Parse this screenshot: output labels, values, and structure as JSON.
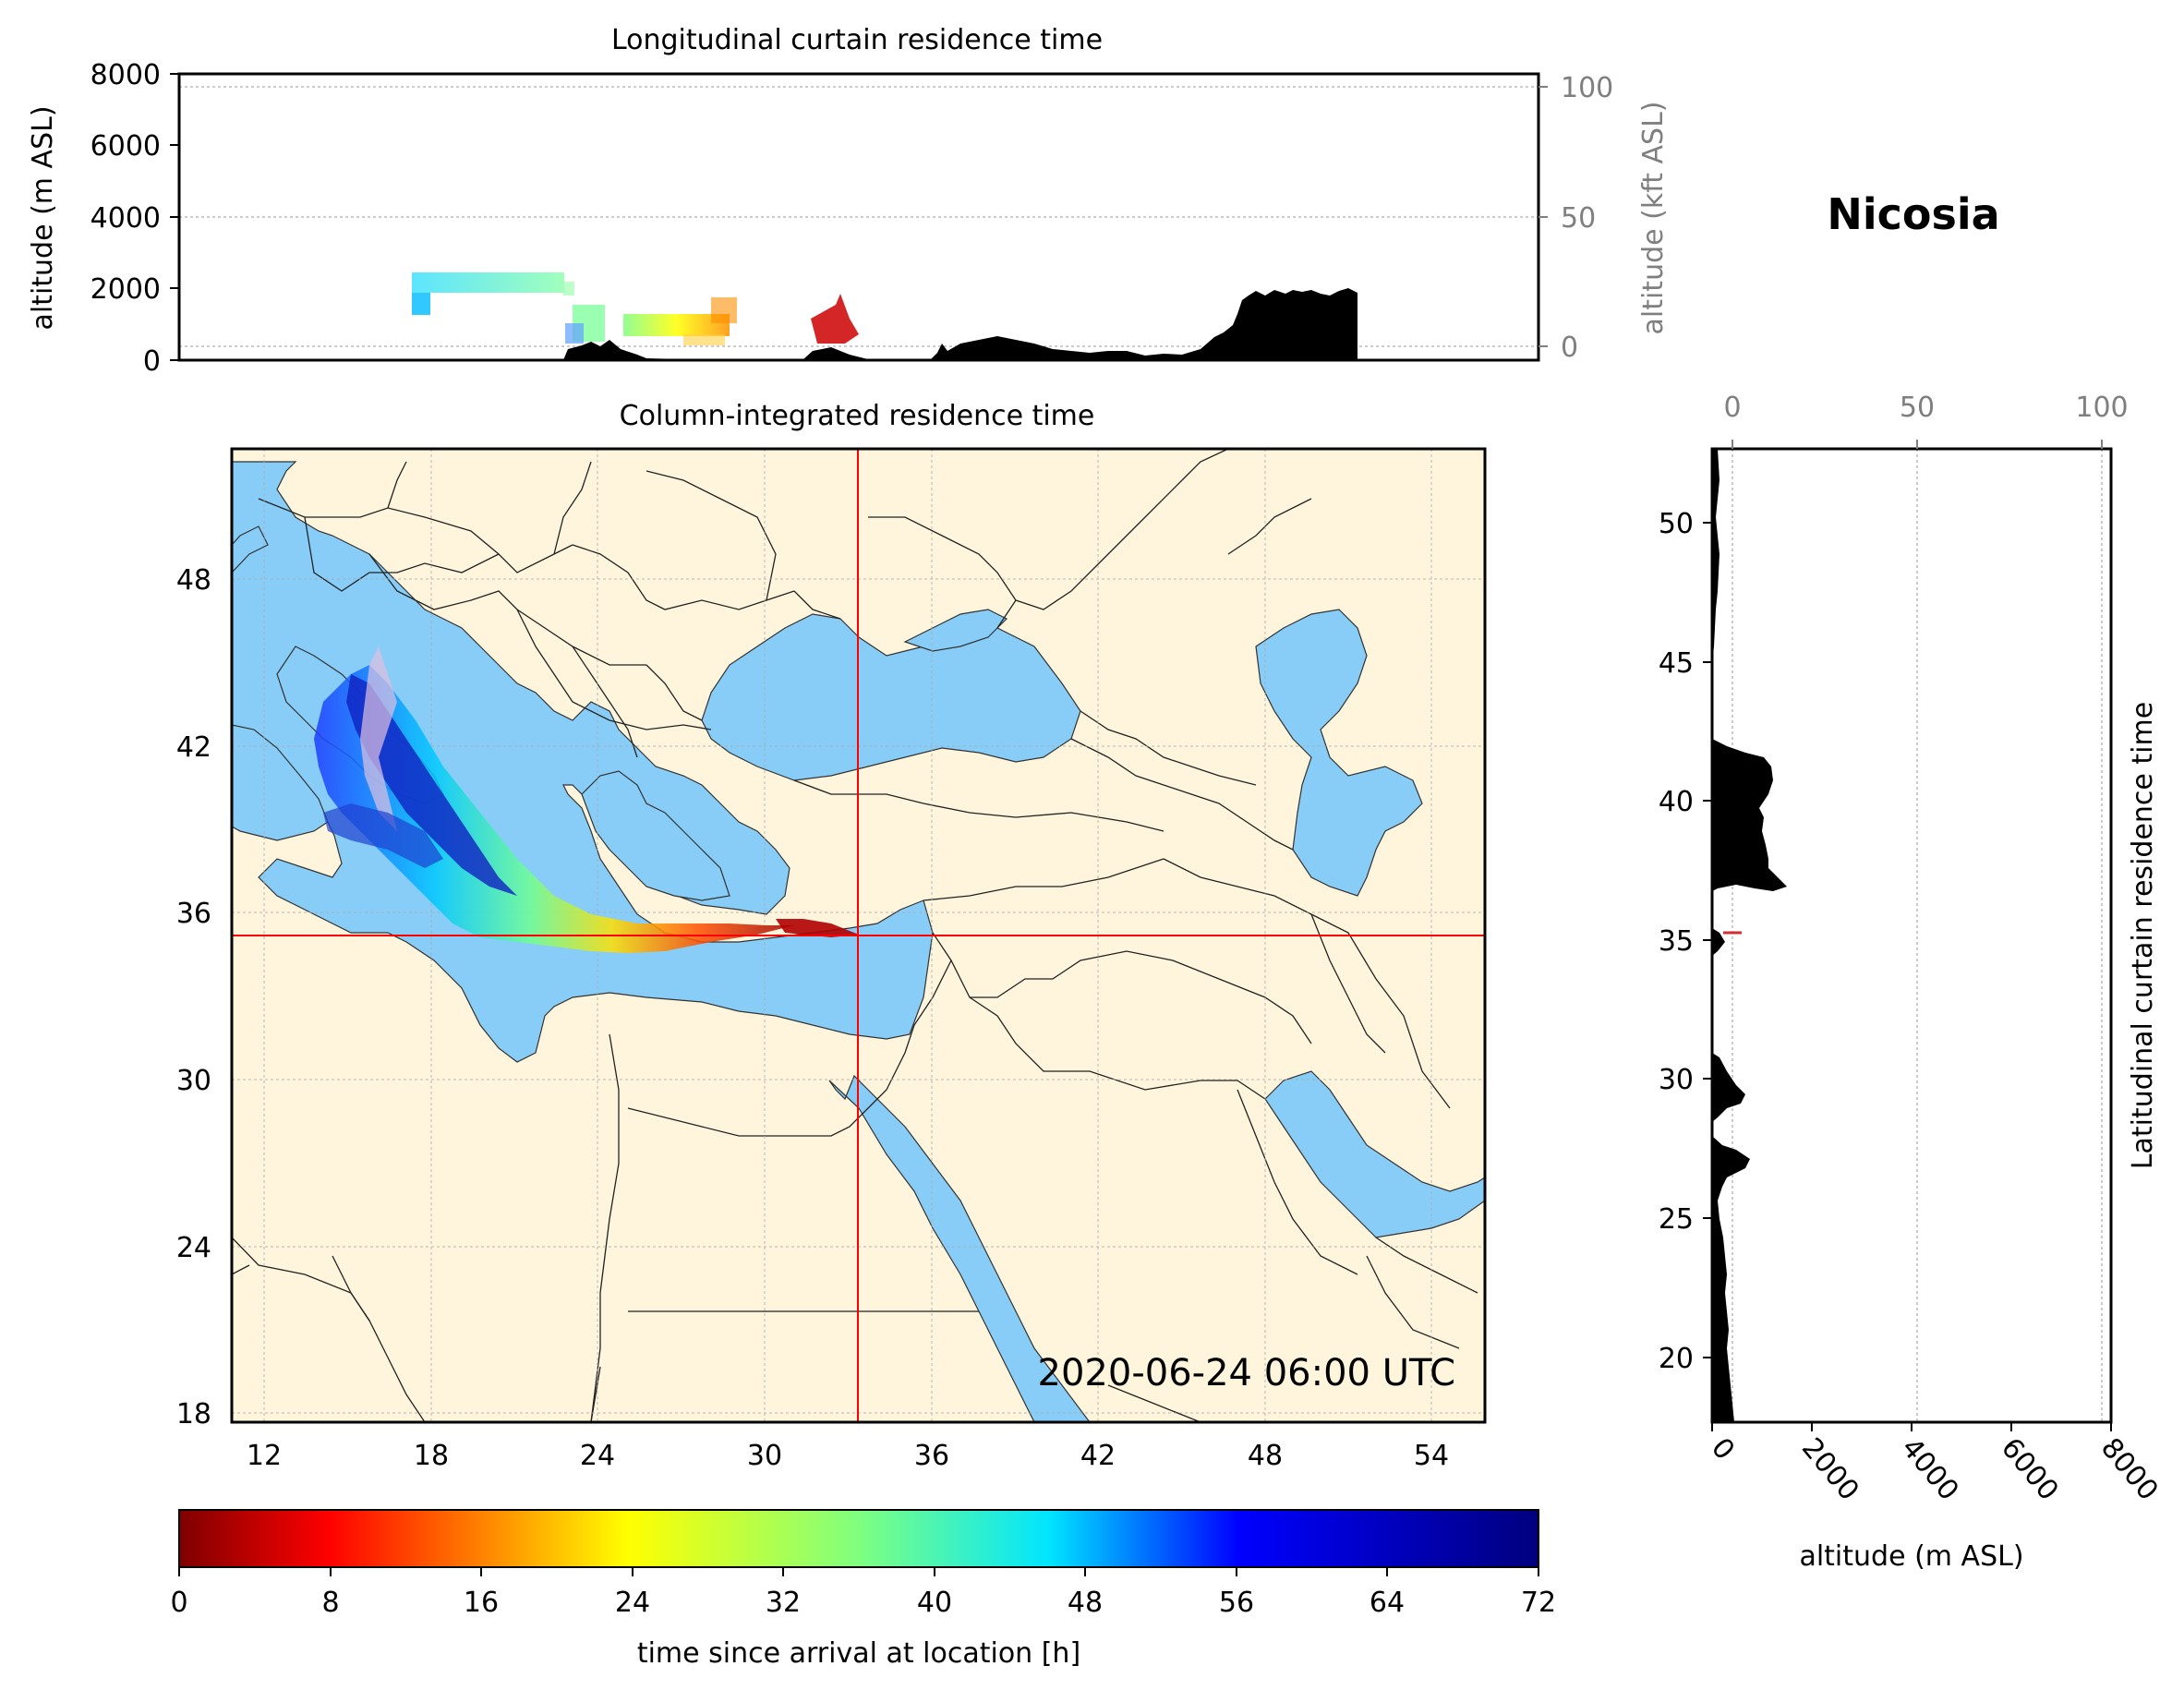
{
  "location_title": "Nicosia",
  "timestamp": "2020-06-24 06:00 UTC",
  "longitudinal_panel": {
    "title": "Longitudinal curtain residence time",
    "ylabel_left": "altitude (m ASL)",
    "ylabel_right": "altitude (kft ASL)",
    "yticks_left": [
      "0",
      "2000",
      "4000",
      "6000",
      "8000"
    ],
    "yticks_right": [
      "0",
      "50",
      "100"
    ]
  },
  "map_panel": {
    "title": "Column-integrated residence time",
    "lon_ticks": [
      "12",
      "18",
      "24",
      "30",
      "36",
      "42",
      "48",
      "54"
    ],
    "lat_ticks": [
      "18",
      "24",
      "30",
      "36",
      "42",
      "48"
    ],
    "release_lon": 33.4,
    "release_lat": 35.2
  },
  "latitudinal_panel": {
    "ylabel": "Latitudinal curtain residence time",
    "xlabel": "altitude (m ASL)",
    "xticks_bottom": [
      "0",
      "2000",
      "4000",
      "6000",
      "8000"
    ],
    "xticks_top": [
      "0",
      "50",
      "100"
    ],
    "lat_ticks": [
      "20",
      "25",
      "30",
      "35",
      "40",
      "45",
      "50"
    ]
  },
  "colorbar": {
    "label": "time since arrival at location [h]",
    "ticks": [
      "0",
      "8",
      "16",
      "24",
      "32",
      "40",
      "48",
      "56",
      "64",
      "72"
    ],
    "colormap": "jet_r"
  },
  "colors": {
    "land": "#fff5dc",
    "water": "#87cdf8",
    "crosshair": "#ff0000",
    "terrain": "#000000"
  }
}
